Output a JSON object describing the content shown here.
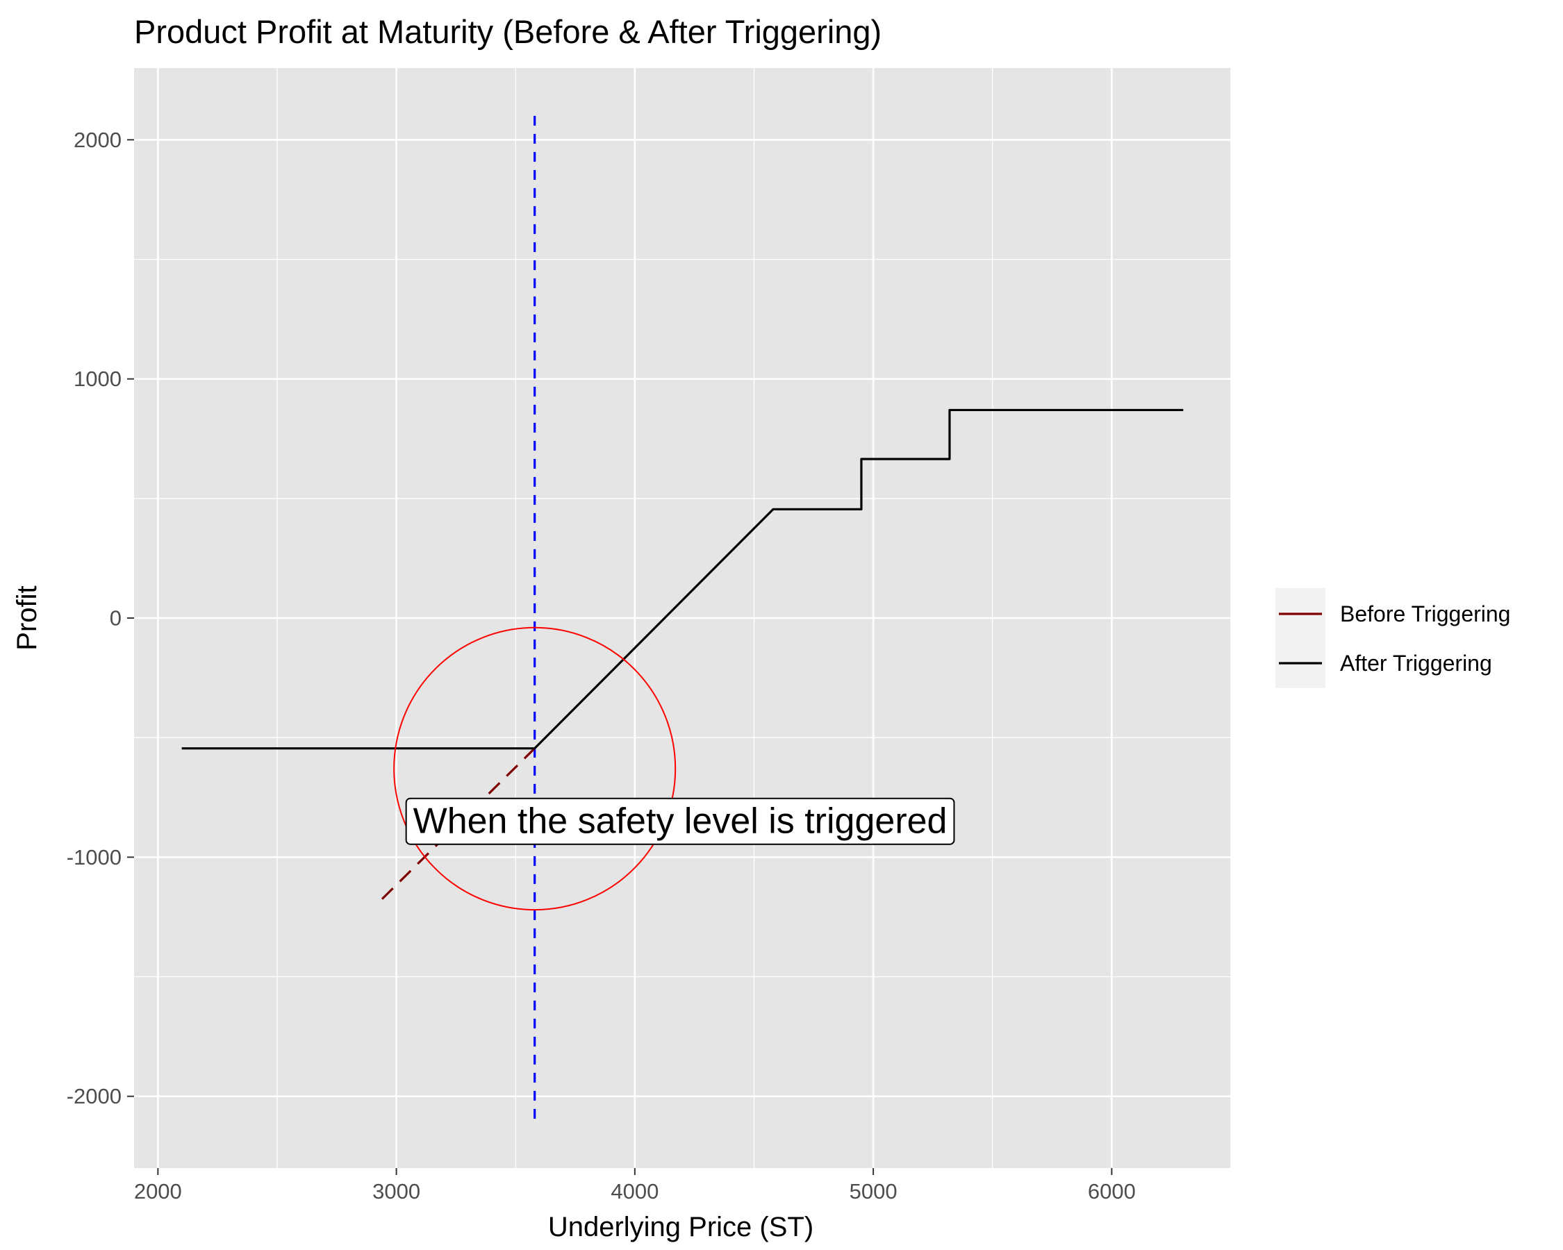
{
  "chart_data": {
    "type": "line",
    "title": "Product Profit at Maturity (Before & After Triggering)",
    "xlabel": "Underlying Price (ST)",
    "ylabel": "Profit",
    "xlim": [
      1900,
      6500
    ],
    "ylim": [
      -2300,
      2300
    ],
    "x_ticks": [
      2000,
      3000,
      4000,
      5000,
      6000
    ],
    "y_ticks": [
      -2000,
      -1000,
      0,
      1000,
      2000
    ],
    "grid": true,
    "legend_position": "right",
    "series": [
      {
        "name": "Before Triggering",
        "color": "#7f0000",
        "dash": "dashed",
        "x": [
          2940,
          3580
        ],
        "y": [
          -1175,
          -545
        ]
      },
      {
        "name": "After Triggering",
        "color": "#000000",
        "dash": "solid",
        "x": [
          2100,
          3580,
          4580,
          4950,
          4950,
          5320,
          5320,
          6300
        ],
        "y": [
          -545,
          -545,
          455,
          455,
          665,
          665,
          870,
          870
        ]
      }
    ],
    "reference_line": {
      "orientation": "vertical",
      "x": 3580,
      "y_range": [
        -2100,
        2100
      ],
      "color": "#0000ff",
      "dash": "dashed"
    },
    "highlight_circle": {
      "cx": 3580,
      "cy": -630,
      "r_x": 590,
      "r_y": 590,
      "color": "#ff0000"
    },
    "annotation": {
      "text": "When the safety level is triggered",
      "x": 4190,
      "y": -850
    }
  }
}
